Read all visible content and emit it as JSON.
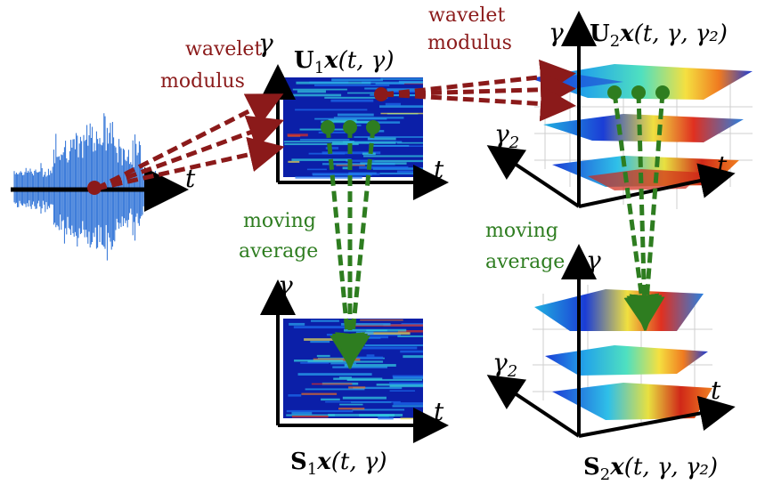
{
  "labels": {
    "wavelet_1": "wavelet",
    "modulus_1": "modulus",
    "wavelet_2": "wavelet",
    "modulus_2": "modulus",
    "moving_1": "moving",
    "average_1": "average",
    "moving_2": "moving",
    "average_2": "average"
  },
  "axes": {
    "t": "t",
    "gamma": "γ",
    "gamma2": "γ",
    "gamma2_sub": "2"
  },
  "math": {
    "U1": {
      "op": "U",
      "sub": "1",
      "x": "x",
      "args": "(t, γ)"
    },
    "U2": {
      "op": "U",
      "sub": "2",
      "x": "x",
      "args": "(t, γ, γ₂)"
    },
    "S1": {
      "op": "S",
      "sub": "1",
      "x": "x",
      "args": "(t, γ)"
    },
    "S2": {
      "op": "S",
      "sub": "2",
      "x": "x",
      "args": "(t, γ, γ₂)"
    }
  },
  "colors": {
    "signal": "#2a6fd6",
    "wavelet_arrow": "#8b1a1a",
    "average_arrow": "#2e7d20",
    "spectrogram_bg": "#0b1fa8"
  }
}
